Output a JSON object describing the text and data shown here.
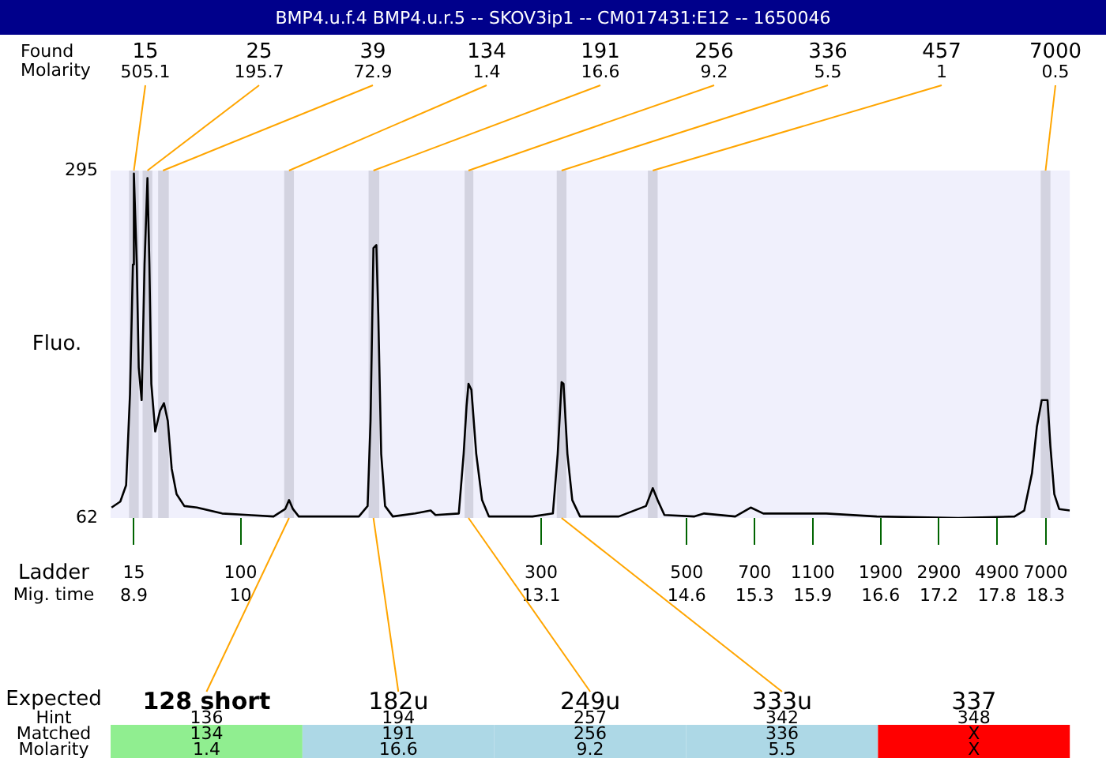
{
  "chart_data": {
    "type": "line",
    "title": "BMP4.u.f.4  BMP4.u.r.5 -- SKOV3ip1 -- CM017431:E12 -- 1650046",
    "ylabel": "Fluo.",
    "xlabel": "Mig. time",
    "color": "#000000",
    "marker": "none",
    "legend": false,
    "x": [
      8.67,
      8.76,
      8.82,
      8.86,
      8.89,
      8.9,
      8.93,
      8.95,
      8.98,
      9.01,
      9.04,
      9.06,
      9.08,
      9.12,
      9.17,
      9.21,
      9.25,
      9.29,
      9.34,
      9.42,
      9.55,
      9.81,
      10.08,
      10.34,
      10.46,
      10.5,
      10.54,
      10.6,
      10.97,
      11.22,
      11.31,
      11.34,
      11.37,
      11.4,
      11.42,
      11.45,
      11.49,
      11.57,
      11.8,
      11.96,
      12.01,
      12.25,
      12.3,
      12.33,
      12.35,
      12.38,
      12.43,
      12.49,
      12.56,
      13.01,
      13.22,
      13.27,
      13.31,
      13.33,
      13.37,
      13.42,
      13.5,
      13.9,
      14.18,
      14.25,
      14.3,
      14.37,
      14.68,
      14.78,
      15.1,
      15.26,
      15.39,
      16.04,
      16.56,
      17.4,
      17.98,
      18.08,
      18.16,
      18.21,
      18.26,
      18.32,
      18.35,
      18.39,
      18.44,
      18.55
    ],
    "values": [
      69,
      73,
      84,
      145,
      232,
      293,
      232,
      163,
      141,
      232,
      290,
      232,
      152,
      120,
      134,
      139,
      127,
      95,
      78,
      70,
      69,
      65,
      64,
      63,
      68,
      74,
      68,
      63,
      63,
      63,
      70,
      127,
      243,
      245,
      198,
      105,
      70,
      63,
      65,
      67,
      64,
      65,
      105,
      137,
      152,
      148,
      105,
      74,
      63,
      63,
      65,
      105,
      153,
      152,
      105,
      74,
      63,
      63,
      70,
      82,
      74,
      64,
      63,
      65,
      63,
      69,
      65,
      65,
      63,
      62,
      63,
      67,
      92,
      123,
      141,
      141,
      110,
      78,
      68,
      67
    ],
    "xlim": [
      8.66,
      18.55
    ],
    "xticks": [
      8.9,
      10,
      13.1,
      14.6,
      15.3,
      15.9,
      16.6,
      17.2,
      17.8,
      18.3
    ],
    "ylim": [
      62,
      295
    ],
    "yticks": [
      62,
      295
    ],
    "bands": [
      {
        "axis": "x",
        "from": 8.85,
        "to": 8.95,
        "color": "#d3d3e0"
      },
      {
        "axis": "x",
        "from": 8.99,
        "to": 9.09,
        "color": "#d3d3e0"
      },
      {
        "axis": "x",
        "from": 9.15,
        "to": 9.26,
        "color": "#d3d3e0"
      },
      {
        "axis": "x",
        "from": 10.45,
        "to": 10.55,
        "color": "#d3d3e0"
      },
      {
        "axis": "x",
        "from": 11.32,
        "to": 11.43,
        "color": "#d3d3e0"
      },
      {
        "axis": "x",
        "from": 12.31,
        "to": 12.4,
        "color": "#d3d3e0"
      },
      {
        "axis": "x",
        "from": 13.26,
        "to": 13.36,
        "color": "#d3d3e0"
      },
      {
        "axis": "x",
        "from": 14.2,
        "to": 14.3,
        "color": "#d3d3e0"
      },
      {
        "axis": "x",
        "from": 18.25,
        "to": 18.35,
        "color": "#d3d3e0"
      }
    ],
    "annotations": [
      "Found",
      "Molarity",
      "Ladder",
      "Expected",
      "Hint",
      "Matched",
      "Molarity",
      "15",
      "100",
      "300",
      "500",
      "700",
      "1100",
      "1900",
      "2900",
      "4900",
      "7000",
      {
        "text": "15\n505.1",
        "x": 8.9,
        "y": 295
      },
      {
        "text": "25\n195.7",
        "x": 9.04,
        "y": 295
      },
      {
        "text": "39\n72.9",
        "x": 9.2,
        "y": 295
      },
      {
        "text": "134\n1.4",
        "x": 10.5,
        "y": 295
      },
      {
        "text": "191\n16.6",
        "x": 11.37,
        "y": 295
      },
      {
        "text": "256\n9.2",
        "x": 12.35,
        "y": 295
      },
      {
        "text": "336\n5.5",
        "x": 13.31,
        "y": 295
      },
      {
        "text": "457\n1",
        "x": 14.25,
        "y": 295
      },
      {
        "text": "7000\n0.5",
        "x": 18.3,
        "y": 295
      },
      {
        "text": "128 short\n136\n134\n1.4",
        "x": 10.5,
        "y": 62
      },
      {
        "text": "182u\n194\n191\n16.6",
        "x": 11.37,
        "y": 62
      },
      {
        "text": "249u\n257\n256\n9.2",
        "x": 12.35,
        "y": 62
      },
      {
        "text": "333u\n342\n336\n5.5",
        "x": 13.31,
        "y": 62
      },
      "337\n348\nX\nX"
    ]
  }
}
